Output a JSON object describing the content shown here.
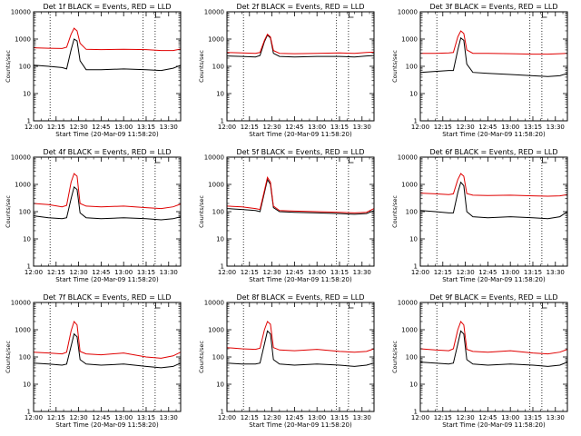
{
  "figure": {
    "start_time_label": "Start Time (20-Mar-09 11:58:20)",
    "ylabel": "Counts/sec",
    "colors": {
      "events": "#000000",
      "lld": "#e00000",
      "axes": "#000000"
    },
    "vertical_dotted_lines": [
      "12:11",
      "13:13",
      "13:21"
    ]
  },
  "chart_data": [
    {
      "type": "line",
      "title": "Det 1f BLACK = Events, RED = LLD",
      "xlabel": "Start Time (20-Mar-09 11:58:20)",
      "ylabel": "Counts/sec",
      "xlim": [
        "12:00",
        "13:38"
      ],
      "ylim": [
        1,
        10000
      ],
      "yscale": "log",
      "x_ticks": [
        "12:00",
        "12:15",
        "12:30",
        "12:45",
        "13:00",
        "13:15",
        "13:30"
      ],
      "y_ticks": [
        "1",
        "10",
        "100",
        "1000",
        "10000"
      ],
      "series": [
        {
          "name": "Events",
          "color": "#000000",
          "x": [
            "12:00",
            "12:10",
            "12:19",
            "12:22",
            "12:25",
            "12:27",
            "12:29",
            "12:31",
            "12:35",
            "12:45",
            "13:00",
            "13:15",
            "13:25",
            "13:33",
            "13:38"
          ],
          "y": [
            110,
            100,
            90,
            80,
            400,
            1000,
            850,
            160,
            75,
            75,
            80,
            75,
            70,
            85,
            110
          ]
        },
        {
          "name": "LLD",
          "color": "#e00000",
          "x": [
            "12:00",
            "12:10",
            "12:19",
            "12:22",
            "12:25",
            "12:27",
            "12:29",
            "12:31",
            "12:35",
            "12:45",
            "13:00",
            "13:15",
            "13:25",
            "13:33",
            "13:38"
          ],
          "y": [
            480,
            460,
            450,
            500,
            1500,
            2500,
            2000,
            700,
            420,
            410,
            420,
            410,
            380,
            380,
            430
          ]
        }
      ]
    },
    {
      "type": "line",
      "title": "Det 2f BLACK = Events, RED = LLD",
      "xlabel": "Start Time (20-Mar-09 11:58:20)",
      "ylabel": "Counts/sec",
      "xlim": [
        "12:00",
        "13:38"
      ],
      "ylim": [
        1,
        10000
      ],
      "yscale": "log",
      "x_ticks": [
        "12:00",
        "12:15",
        "12:30",
        "12:45",
        "13:00",
        "13:15",
        "13:30"
      ],
      "y_ticks": [
        "1",
        "10",
        "100",
        "1000",
        "10000"
      ],
      "series": [
        {
          "name": "Events",
          "color": "#000000",
          "x": [
            "12:00",
            "12:10",
            "12:19",
            "12:22",
            "12:25",
            "12:27",
            "12:29",
            "12:31",
            "12:35",
            "12:45",
            "13:00",
            "13:15",
            "13:25",
            "13:33",
            "13:38"
          ],
          "y": [
            240,
            230,
            220,
            250,
            800,
            1400,
            1100,
            300,
            230,
            220,
            230,
            230,
            220,
            240,
            250
          ]
        },
        {
          "name": "LLD",
          "color": "#e00000",
          "x": [
            "12:00",
            "12:10",
            "12:19",
            "12:22",
            "12:25",
            "12:27",
            "12:29",
            "12:31",
            "12:35",
            "12:45",
            "13:00",
            "13:15",
            "13:25",
            "13:33",
            "13:38"
          ],
          "y": [
            320,
            310,
            300,
            320,
            900,
            1500,
            1200,
            380,
            300,
            290,
            300,
            310,
            300,
            320,
            330
          ]
        }
      ]
    },
    {
      "type": "line",
      "title": "Det 3f BLACK = Events, RED = LLD",
      "xlabel": "Start Time (20-Mar-09 11:58:20)",
      "ylabel": "Counts/sec",
      "xlim": [
        "12:00",
        "13:38"
      ],
      "ylim": [
        1,
        10000
      ],
      "yscale": "log",
      "x_ticks": [
        "12:00",
        "12:15",
        "12:30",
        "12:45",
        "13:00",
        "13:15",
        "13:30"
      ],
      "y_ticks": [
        "1",
        "10",
        "100",
        "1000",
        "10000"
      ],
      "series": [
        {
          "name": "Events",
          "color": "#000000",
          "x": [
            "12:00",
            "12:10",
            "12:19",
            "12:22",
            "12:25",
            "12:27",
            "12:29",
            "12:31",
            "12:35",
            "12:45",
            "13:00",
            "13:15",
            "13:25",
            "13:33",
            "13:38"
          ],
          "y": [
            60,
            65,
            70,
            70,
            400,
            1100,
            900,
            120,
            60,
            55,
            50,
            45,
            42,
            45,
            55
          ]
        },
        {
          "name": "LLD",
          "color": "#e00000",
          "x": [
            "12:00",
            "12:10",
            "12:19",
            "12:22",
            "12:25",
            "12:27",
            "12:29",
            "12:31",
            "12:35",
            "12:45",
            "13:00",
            "13:15",
            "13:25",
            "13:33",
            "13:38"
          ],
          "y": [
            300,
            300,
            310,
            320,
            1200,
            2000,
            1600,
            400,
            300,
            300,
            290,
            280,
            280,
            290,
            300
          ]
        }
      ]
    },
    {
      "type": "line",
      "title": "Det 4f BLACK = Events, RED = LLD",
      "xlabel": "Start Time (20-Mar-09 11:58:20)",
      "ylabel": "Counts/sec",
      "xlim": [
        "12:00",
        "13:38"
      ],
      "ylim": [
        1,
        10000
      ],
      "yscale": "log",
      "x_ticks": [
        "12:00",
        "12:15",
        "12:30",
        "12:45",
        "13:00",
        "13:15",
        "13:30"
      ],
      "y_ticks": [
        "1",
        "10",
        "100",
        "1000",
        "10000"
      ],
      "series": [
        {
          "name": "Events",
          "color": "#000000",
          "x": [
            "12:00",
            "12:10",
            "12:19",
            "12:22",
            "12:25",
            "12:27",
            "12:29",
            "12:31",
            "12:35",
            "12:45",
            "13:00",
            "13:15",
            "13:25",
            "13:33",
            "13:38"
          ],
          "y": [
            70,
            60,
            55,
            60,
            300,
            800,
            650,
            90,
            60,
            55,
            60,
            55,
            50,
            55,
            65
          ]
        },
        {
          "name": "LLD",
          "color": "#e00000",
          "x": [
            "12:00",
            "12:10",
            "12:19",
            "12:22",
            "12:25",
            "12:27",
            "12:29",
            "12:31",
            "12:35",
            "12:45",
            "13:00",
            "13:15",
            "13:25",
            "13:33",
            "13:38"
          ],
          "y": [
            200,
            180,
            150,
            170,
            1200,
            2500,
            2000,
            200,
            160,
            150,
            160,
            140,
            130,
            150,
            190
          ]
        }
      ]
    },
    {
      "type": "line",
      "title": "Det 5f BLACK = Events, RED = LLD",
      "xlabel": "Start Time (20-Mar-09 11:58:20)",
      "ylabel": "Counts/sec",
      "xlim": [
        "12:00",
        "13:38"
      ],
      "ylim": [
        1,
        10000
      ],
      "yscale": "log",
      "x_ticks": [
        "12:00",
        "12:15",
        "12:30",
        "12:45",
        "13:00",
        "13:15",
        "13:30"
      ],
      "y_ticks": [
        "1",
        "10",
        "100",
        "1000",
        "10000"
      ],
      "series": [
        {
          "name": "Events",
          "color": "#000000",
          "x": [
            "12:00",
            "12:10",
            "12:19",
            "12:22",
            "12:25",
            "12:27",
            "12:29",
            "12:31",
            "12:35",
            "12:45",
            "13:00",
            "13:15",
            "13:25",
            "13:33",
            "13:38"
          ],
          "y": [
            130,
            120,
            110,
            100,
            500,
            1500,
            1000,
            140,
            100,
            95,
            90,
            85,
            80,
            85,
            110
          ]
        },
        {
          "name": "LLD",
          "color": "#e00000",
          "x": [
            "12:00",
            "12:10",
            "12:19",
            "12:22",
            "12:25",
            "12:27",
            "12:29",
            "12:31",
            "12:35",
            "12:45",
            "13:00",
            "13:15",
            "13:25",
            "13:33",
            "13:38"
          ],
          "y": [
            160,
            150,
            130,
            120,
            600,
            1800,
            1200,
            160,
            110,
            105,
            100,
            95,
            90,
            95,
            130
          ]
        }
      ]
    },
    {
      "type": "line",
      "title": "Det 6f BLACK = Events, RED = LLD",
      "xlabel": "Start Time (20-Mar-09 11:58:20)",
      "ylabel": "Counts/sec",
      "xlim": [
        "12:00",
        "13:38"
      ],
      "ylim": [
        1,
        10000
      ],
      "yscale": "log",
      "x_ticks": [
        "12:00",
        "12:15",
        "12:30",
        "12:45",
        "13:00",
        "13:15",
        "13:30"
      ],
      "y_ticks": [
        "1",
        "10",
        "100",
        "1000",
        "10000"
      ],
      "series": [
        {
          "name": "Events",
          "color": "#000000",
          "x": [
            "12:00",
            "12:10",
            "12:19",
            "12:22",
            "12:25",
            "12:27",
            "12:29",
            "12:31",
            "12:35",
            "12:45",
            "13:00",
            "13:15",
            "13:25",
            "13:33",
            "13:38"
          ],
          "y": [
            110,
            100,
            90,
            90,
            500,
            1200,
            900,
            100,
            65,
            60,
            65,
            60,
            55,
            65,
            100
          ]
        },
        {
          "name": "LLD",
          "color": "#e00000",
          "x": [
            "12:00",
            "12:10",
            "12:19",
            "12:22",
            "12:25",
            "12:27",
            "12:29",
            "12:31",
            "12:35",
            "12:45",
            "13:00",
            "13:15",
            "13:25",
            "13:33",
            "13:38"
          ],
          "y": [
            480,
            450,
            420,
            450,
            1500,
            2500,
            2000,
            460,
            400,
            390,
            400,
            380,
            370,
            380,
            420
          ]
        }
      ]
    },
    {
      "type": "line",
      "title": "Det 7f BLACK = Events, RED = LLD",
      "xlabel": "Start Time (20-Mar-09 11:58:20)",
      "ylabel": "Counts/sec",
      "xlim": [
        "12:00",
        "13:38"
      ],
      "ylim": [
        1,
        10000
      ],
      "yscale": "log",
      "x_ticks": [
        "12:00",
        "12:15",
        "12:30",
        "12:45",
        "13:00",
        "13:15",
        "13:30"
      ],
      "y_ticks": [
        "1",
        "10",
        "100",
        "1000",
        "10000"
      ],
      "series": [
        {
          "name": "Events",
          "color": "#000000",
          "x": [
            "12:00",
            "12:10",
            "12:19",
            "12:22",
            "12:25",
            "12:27",
            "12:29",
            "12:31",
            "12:35",
            "12:45",
            "13:00",
            "13:15",
            "13:25",
            "13:33",
            "13:38"
          ],
          "y": [
            60,
            55,
            50,
            55,
            250,
            700,
            550,
            80,
            55,
            50,
            55,
            45,
            40,
            45,
            60
          ]
        },
        {
          "name": "LLD",
          "color": "#e00000",
          "x": [
            "12:00",
            "12:10",
            "12:19",
            "12:22",
            "12:25",
            "12:27",
            "12:29",
            "12:31",
            "12:35",
            "12:45",
            "13:00",
            "13:15",
            "13:25",
            "13:33",
            "13:38"
          ],
          "y": [
            150,
            140,
            130,
            150,
            900,
            2000,
            1500,
            160,
            130,
            120,
            140,
            100,
            90,
            110,
            150
          ]
        }
      ]
    },
    {
      "type": "line",
      "title": "Det 8f BLACK = Events, RED = LLD",
      "xlabel": "Start Time (20-Mar-09 11:58:20)",
      "ylabel": "Counts/sec",
      "xlim": [
        "12:00",
        "13:38"
      ],
      "ylim": [
        1,
        10000
      ],
      "yscale": "log",
      "x_ticks": [
        "12:00",
        "12:15",
        "12:30",
        "12:45",
        "13:00",
        "13:15",
        "13:30"
      ],
      "y_ticks": [
        "1",
        "10",
        "100",
        "1000",
        "10000"
      ],
      "series": [
        {
          "name": "Events",
          "color": "#000000",
          "x": [
            "12:00",
            "12:10",
            "12:19",
            "12:22",
            "12:25",
            "12:27",
            "12:29",
            "12:31",
            "12:35",
            "12:45",
            "13:00",
            "13:15",
            "13:25",
            "13:33",
            "13:38"
          ],
          "y": [
            60,
            55,
            55,
            60,
            300,
            900,
            700,
            80,
            55,
            50,
            55,
            50,
            45,
            50,
            60
          ]
        },
        {
          "name": "LLD",
          "color": "#e00000",
          "x": [
            "12:00",
            "12:10",
            "12:19",
            "12:22",
            "12:25",
            "12:27",
            "12:29",
            "12:31",
            "12:35",
            "12:45",
            "13:00",
            "13:15",
            "13:25",
            "13:33",
            "13:38"
          ],
          "y": [
            220,
            200,
            190,
            210,
            1000,
            2000,
            1600,
            220,
            180,
            170,
            190,
            160,
            150,
            160,
            200
          ]
        }
      ]
    },
    {
      "type": "line",
      "title": "Det 9f BLACK = Events, RED = LLD",
      "xlabel": "Start Time (20-Mar-09 11:58:20)",
      "ylabel": "Counts/sec",
      "xlim": [
        "12:00",
        "13:38"
      ],
      "ylim": [
        1,
        10000
      ],
      "yscale": "log",
      "x_ticks": [
        "12:00",
        "12:15",
        "12:30",
        "12:45",
        "13:00",
        "13:15",
        "13:30"
      ],
      "y_ticks": [
        "1",
        "10",
        "100",
        "1000",
        "10000"
      ],
      "series": [
        {
          "name": "Events",
          "color": "#000000",
          "x": [
            "12:00",
            "12:10",
            "12:19",
            "12:22",
            "12:25",
            "12:27",
            "12:29",
            "12:31",
            "12:35",
            "12:45",
            "13:00",
            "13:15",
            "13:25",
            "13:33",
            "13:38"
          ],
          "y": [
            65,
            60,
            55,
            60,
            300,
            900,
            700,
            80,
            55,
            50,
            55,
            50,
            45,
            50,
            65
          ]
        },
        {
          "name": "LLD",
          "color": "#e00000",
          "x": [
            "12:00",
            "12:10",
            "12:19",
            "12:22",
            "12:25",
            "12:27",
            "12:29",
            "12:31",
            "12:35",
            "12:45",
            "13:00",
            "13:15",
            "13:25",
            "13:33",
            "13:38"
          ],
          "y": [
            200,
            180,
            170,
            200,
            1000,
            2000,
            1500,
            190,
            160,
            150,
            170,
            140,
            130,
            150,
            190
          ]
        }
      ]
    }
  ]
}
